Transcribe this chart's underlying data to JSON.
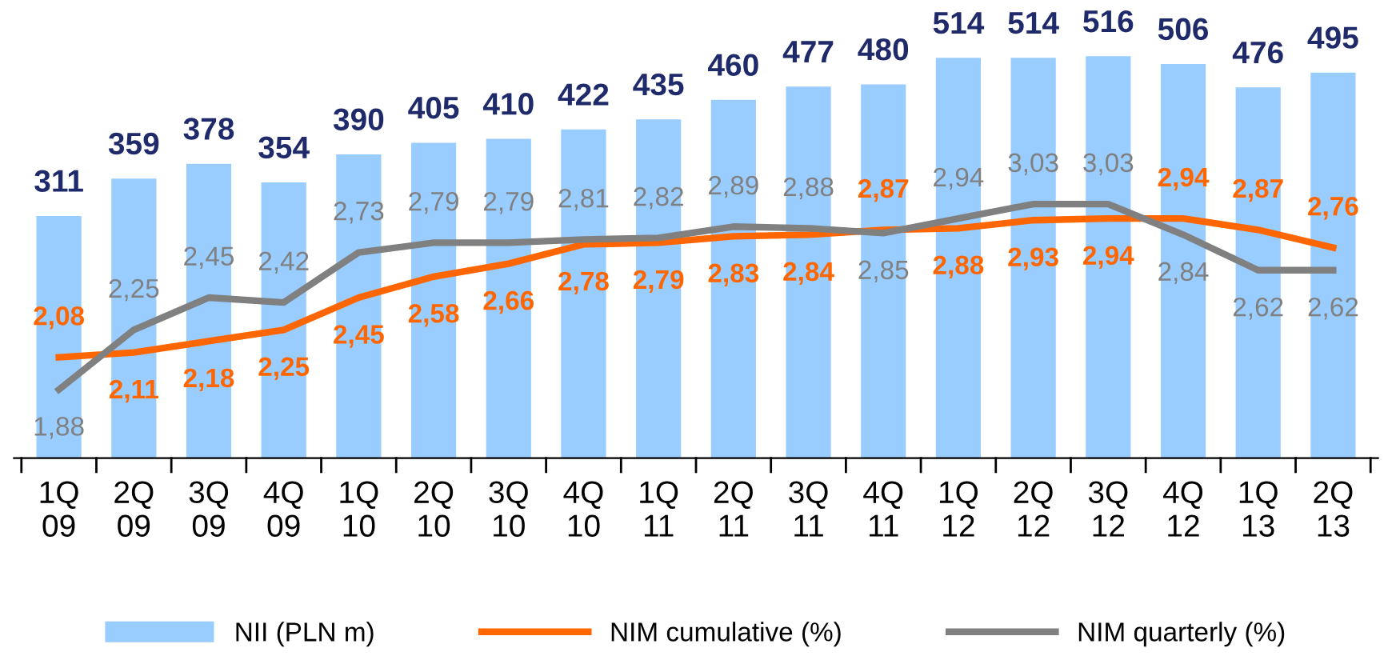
{
  "chart_data": {
    "type": "bar",
    "categories": [
      "1Q\n09",
      "2Q\n09",
      "3Q\n09",
      "4Q\n09",
      "1Q\n10",
      "2Q\n10",
      "3Q\n10",
      "4Q\n10",
      "1Q\n11",
      "2Q\n11",
      "3Q\n11",
      "4Q\n11",
      "1Q\n12",
      "2Q\n12",
      "3Q\n12",
      "4Q\n12",
      "1Q\n13",
      "2Q\n13"
    ],
    "series": [
      {
        "name": "NII (PLN m)",
        "color": "#99ccff",
        "values": [
          311,
          359,
          378,
          354,
          390,
          405,
          410,
          422,
          435,
          460,
          477,
          480,
          514,
          514,
          516,
          506,
          476,
          495
        ]
      },
      {
        "name": "NIM cumulative (%)",
        "type": "line",
        "axis": "y2",
        "color": "#ff6600",
        "values": [
          2.08,
          2.11,
          2.18,
          2.25,
          2.45,
          2.58,
          2.66,
          2.78,
          2.79,
          2.83,
          2.84,
          2.87,
          2.88,
          2.93,
          2.94,
          2.94,
          2.87,
          2.76
        ],
        "value_labels": [
          "2,08",
          "2,11",
          "2,18",
          "2,25",
          "2,45",
          "2,58",
          "2,66",
          "2,78",
          "2,79",
          "2,83",
          "2,84",
          "2,87",
          "2,88",
          "2,93",
          "2,94",
          "2,94",
          "2,87",
          "2,76"
        ]
      },
      {
        "name": "NIM quarterly (%)",
        "type": "line",
        "axis": "y2",
        "color": "#808080",
        "values": [
          1.88,
          2.25,
          2.45,
          2.42,
          2.73,
          2.79,
          2.79,
          2.81,
          2.82,
          2.89,
          2.88,
          2.85,
          2.94,
          3.03,
          3.03,
          2.84,
          2.62,
          2.62
        ],
        "value_labels": [
          "1,88",
          "2,25",
          "2,45",
          "2,42",
          "2,73",
          "2,79",
          "2,79",
          "2,81",
          "2,82",
          "2,89",
          "2,88",
          "2,85",
          "2,94",
          "3,03",
          "3,03",
          "2,84",
          "2,62",
          "2,62"
        ]
      }
    ],
    "tick_labels": "x",
    "data_labels": true,
    "legend": "bottom",
    "grid": false,
    "marker": "none",
    "line_style": "solid"
  }
}
